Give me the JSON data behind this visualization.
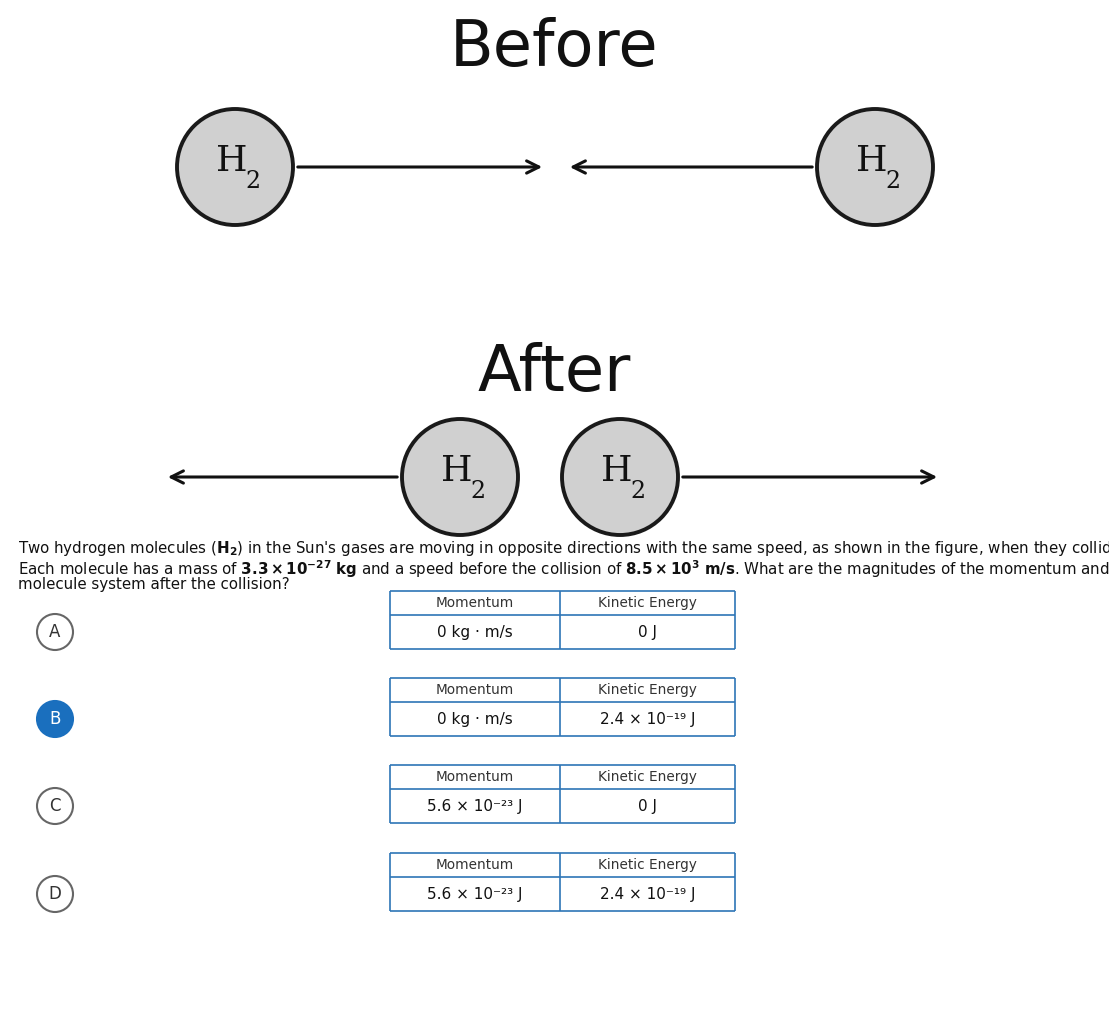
{
  "title_before": "Before",
  "title_after": "After",
  "circle_color": "#d0d0d0",
  "circle_edge": "#1a1a1a",
  "filled_circle_color": "#1a6fbe",
  "table_border_color": "#2e75b6",
  "bg_color": "#ffffff",
  "options": [
    {
      "label": "A",
      "filled": false,
      "momentum": "0 kg · m/s",
      "ke": "0 J"
    },
    {
      "label": "B",
      "filled": true,
      "momentum": "0 kg · m/s",
      "ke": "2.4 × 10⁻¹⁹ J"
    },
    {
      "label": "C",
      "filled": false,
      "momentum": "5.6 × 10⁻²³ J",
      "ke": "0 J"
    },
    {
      "label": "D",
      "filled": false,
      "momentum": "5.6 × 10⁻²³ J",
      "ke": "2.4 × 10⁻¹⁹ J"
    }
  ]
}
